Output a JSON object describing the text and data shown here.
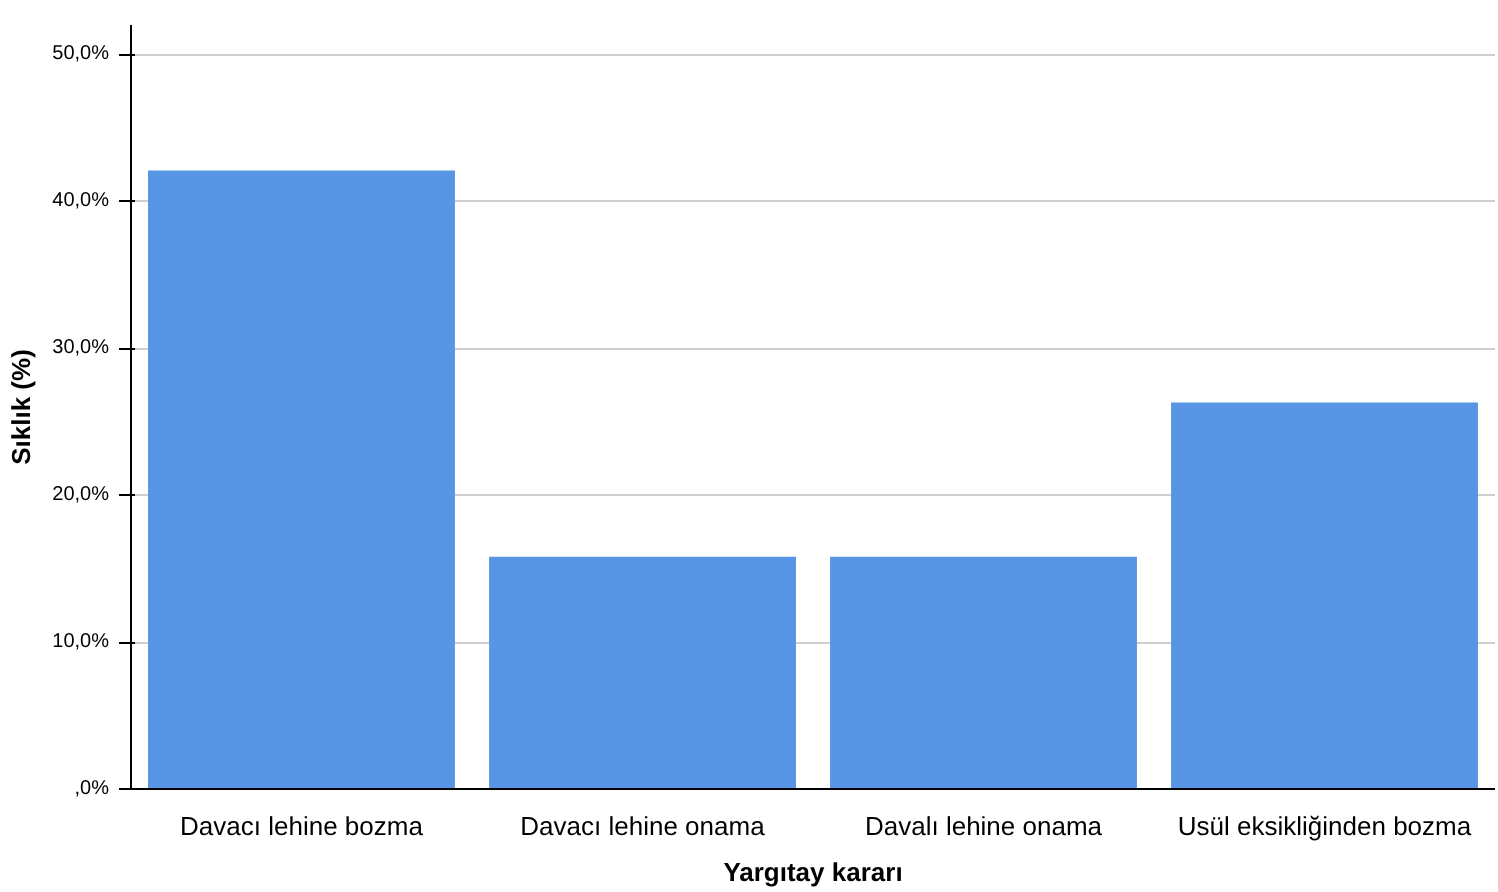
{
  "chart_data": {
    "type": "bar",
    "xlabel": "Yargıtay kararı",
    "ylabel": "Sıklık (%)",
    "categories": [
      "Davacı lehine bozma",
      "Davacı lehine onama",
      "Davalı lehine onama",
      "Usül eksikliğinden bozma"
    ],
    "values": [
      42.1,
      15.8,
      15.8,
      26.3
    ],
    "color": "#5895e4",
    "ylim": [
      0,
      52
    ],
    "yticks": [
      {
        "value": 0,
        "label": ",0%"
      },
      {
        "value": 10,
        "label": "10,0%"
      },
      {
        "value": 20,
        "label": "20,0%"
      },
      {
        "value": 30,
        "label": "30,0%"
      },
      {
        "value": 40,
        "label": "40,0%"
      },
      {
        "value": 50,
        "label": "50,0%"
      }
    ],
    "grid": "y"
  }
}
